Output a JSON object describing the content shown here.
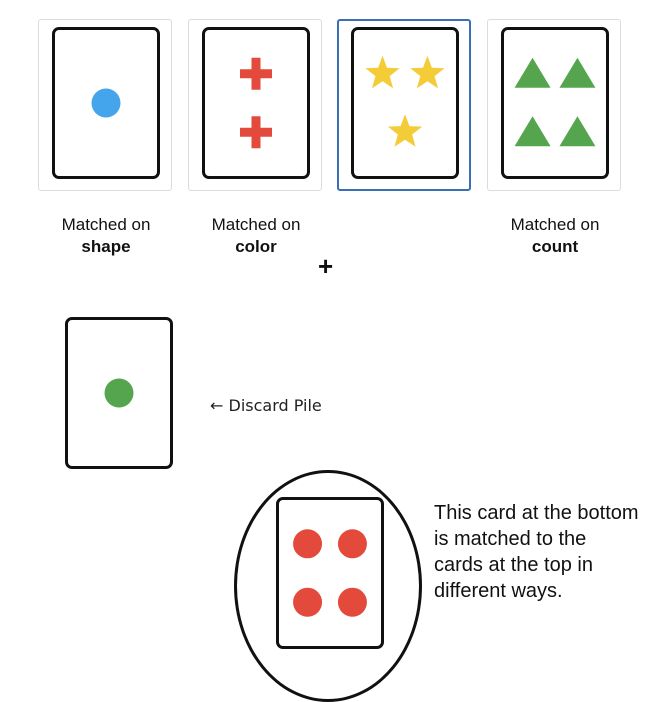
{
  "colors": {
    "blue": "#45a5ec",
    "red": "#e34a3b",
    "yellow": "#f4cc38",
    "green": "#55a54f",
    "selected_border": "#3a6fb5"
  },
  "top_cards": [
    {
      "shape": "circle",
      "color": "blue",
      "count": 1,
      "selected": false,
      "label_line1": "Matched on",
      "label_line2": "shape"
    },
    {
      "shape": "cross",
      "color": "red",
      "count": 2,
      "selected": false,
      "label_line1": "Matched on",
      "label_line2": "color"
    },
    {
      "shape": "star",
      "color": "yellow",
      "count": 3,
      "selected": true,
      "label_line1": "",
      "label_line2": ""
    },
    {
      "shape": "triangle",
      "color": "green",
      "count": 4,
      "selected": false,
      "label_line1": "Matched on",
      "label_line2": "count"
    }
  ],
  "plus": "+",
  "discard": {
    "card": {
      "shape": "circle",
      "color": "green",
      "count": 1
    },
    "label": "← Discard Pile"
  },
  "bottom_card": {
    "shape": "circle",
    "color": "red",
    "count": 4
  },
  "explanation": "This card at the bottom is matched to the cards at the top in different ways."
}
